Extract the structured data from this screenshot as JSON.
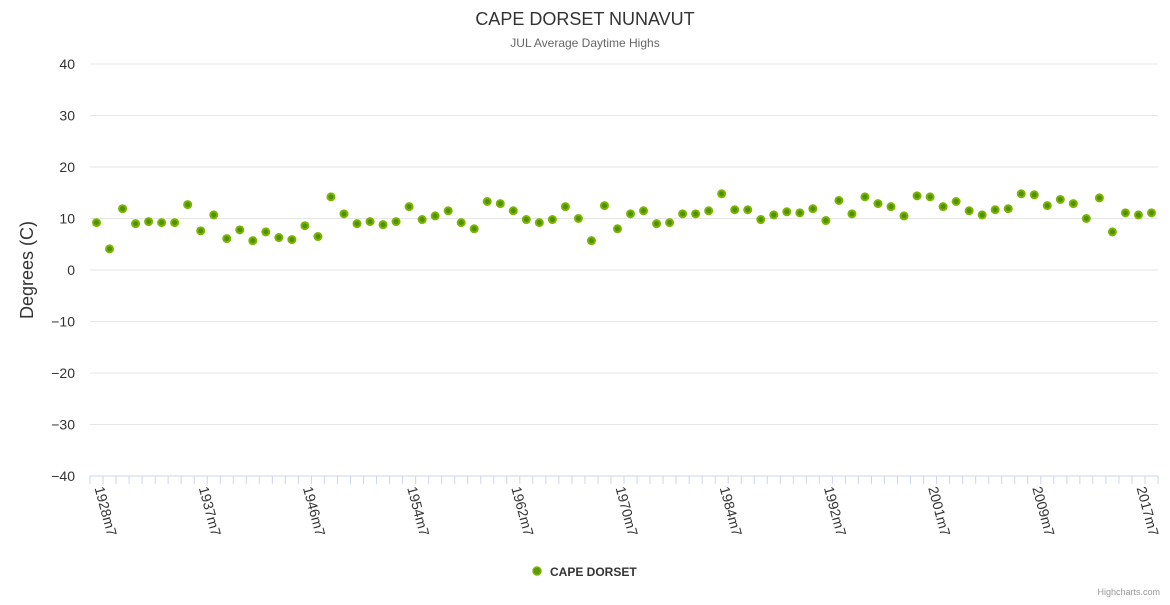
{
  "chart_data": {
    "type": "scatter",
    "title": "CAPE DORSET NUNAVUT",
    "subtitle": "JUL Average Daytime Highs",
    "ylabel": "Degrees (C)",
    "xlabel": "",
    "ylim": [
      -40,
      40
    ],
    "yticks": [
      40,
      30,
      20,
      10,
      0,
      -10,
      -20,
      -30,
      -40
    ],
    "grid": true,
    "legend_position": "bottom-center",
    "series": [
      {
        "name": "CAPE DORSET",
        "color": "#7cb400",
        "values": [
          9.2,
          4.1,
          11.9,
          9.0,
          9.4,
          9.2,
          9.2,
          12.7,
          7.6,
          10.7,
          6.1,
          7.8,
          5.7,
          7.4,
          6.3,
          5.9,
          8.6,
          6.5,
          14.2,
          10.9,
          9.0,
          9.4,
          8.8,
          9.4,
          12.3,
          9.8,
          10.5,
          11.5,
          9.2,
          8.0,
          13.3,
          12.9,
          11.5,
          9.8,
          9.2,
          9.8,
          12.3,
          10.0,
          5.7,
          12.5,
          8.0,
          10.9,
          11.5,
          9.0,
          9.2,
          10.9,
          10.9,
          11.5,
          14.8,
          11.7,
          11.7,
          9.8,
          10.7,
          11.3,
          11.1,
          11.9,
          9.6,
          13.5,
          10.9,
          14.2,
          12.9,
          12.3,
          10.5,
          14.4,
          14.2,
          12.3,
          13.3,
          11.5,
          10.7,
          11.7,
          11.9,
          14.8,
          14.6,
          12.5,
          13.7,
          12.9,
          10.0,
          14.0,
          7.4,
          11.1,
          10.7,
          11.1
        ]
      }
    ],
    "x_tick_labels": [
      {
        "index": 0,
        "label": "1928m7"
      },
      {
        "index": 8,
        "label": "1937m7"
      },
      {
        "index": 16,
        "label": "1946m7"
      },
      {
        "index": 24,
        "label": "1954m7"
      },
      {
        "index": 32,
        "label": "1962m7"
      },
      {
        "index": 40,
        "label": "1970m7"
      },
      {
        "index": 48,
        "label": "1984m7"
      },
      {
        "index": 56,
        "label": "1992m7"
      },
      {
        "index": 64,
        "label": "2001m7"
      },
      {
        "index": 72,
        "label": "2009m7"
      },
      {
        "index": 80,
        "label": "2017m7"
      }
    ]
  },
  "credits": "Highcharts.com"
}
